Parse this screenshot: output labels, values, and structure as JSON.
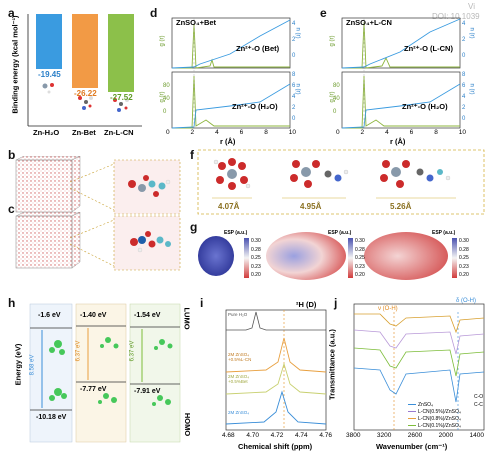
{
  "watermark": {
    "line1": "Vi",
    "line2": "DOI: 10.1039"
  },
  "panels": {
    "a": {
      "label": "a",
      "ylabel": "Binding energy (kcal mol⁻¹)",
      "categories": [
        "Zn-H₂O",
        "Zn-Bet",
        "Zn-L-CN"
      ],
      "values": [
        "-19.45",
        "-26.22",
        "-27.52"
      ],
      "colors": [
        "#3a9be0",
        "#f29a45",
        "#8cc04a"
      ]
    },
    "d": {
      "label": "d",
      "top_legend": "ZnSO₄+Bet",
      "top_annot": "Zn²⁺-O (Bet)",
      "bottom_annot": "Zn²⁺-O (H₂O)",
      "g_label": "g (r)",
      "n_label": "n (r)",
      "xlabel": "r (Å)",
      "xticks": [
        "0",
        "2",
        "4",
        "6",
        "8",
        "10"
      ],
      "yticks_left": [
        "0",
        "40",
        "80"
      ],
      "yticks_right_top": [
        "0",
        "2",
        "4"
      ],
      "yticks_right_bottom": [
        "0",
        "2",
        "4",
        "6",
        "8"
      ]
    },
    "e": {
      "label": "e",
      "top_legend": "ZnSO₄+L-CN",
      "top_annot": "Zn²⁺-O (L-CN)",
      "bottom_annot": "Zn²⁺-O (H₂O)",
      "g_label": "g (r)",
      "n_label": "n (r)",
      "xlabel": "r (Å)",
      "xticks": [
        "0",
        "2",
        "4",
        "6",
        "8",
        "10"
      ],
      "yticks_left": [
        "0",
        "40",
        "80"
      ],
      "yticks_right_top": [
        "0",
        "2",
        "4"
      ],
      "yticks_right_bottom": [
        "0",
        "2",
        "4",
        "6",
        "8"
      ]
    },
    "b": {
      "label": "b"
    },
    "c": {
      "label": "c"
    },
    "f": {
      "label": "f",
      "dims": [
        "4.07Å",
        "4.95Å",
        "5.26Å"
      ]
    },
    "g": {
      "label": "g",
      "esp_title": "ESP (a.u.)",
      "scales": [
        [
          "0.30",
          "0.28",
          "0.25",
          "0.23",
          "0.20"
        ],
        [
          "0.30",
          "0.28",
          "0.25",
          "0.23",
          "0.20"
        ],
        [
          "0.30",
          "0.28",
          "0.25",
          "0.23",
          "0.20"
        ]
      ]
    },
    "h": {
      "label": "h",
      "ylabel": "Energy (eV)",
      "lumo": [
        "-1.6 eV",
        "-1.40 eV",
        "-1.54 eV"
      ],
      "homo": [
        "-10.18 eV",
        "-7.77 eV",
        "-7.91 eV"
      ],
      "gaps": [
        "8.58 eV",
        "6.37 eV",
        "6.37 eV"
      ],
      "side_top": "LUMO",
      "side_bottom": "HOMO"
    },
    "i": {
      "label": "i",
      "title": "²H (D)",
      "curve_labels": [
        "Pure H₂O",
        "2M ZnSO₄ +0.5%L-CN",
        "2M ZnSO₄ +0.5%Bet",
        "2M ZnSO₄"
      ],
      "xlabel": "Chemical shift (ppm)",
      "xticks": [
        "4.68",
        "4.70",
        "4.72",
        "4.74",
        "4.76"
      ]
    },
    "j": {
      "label": "j",
      "ylabel": "Transmittance (a.u.)",
      "xlabel": "Wavenumber (cm⁻¹)",
      "xticks": [
        "3800",
        "3200",
        "2600",
        "2000",
        "1400"
      ],
      "ann_oh": "ν (O-H)",
      "ann_delta": "δ (O-H)",
      "ann_co": "C-O",
      "ann_cc": "C-C",
      "legend": [
        "ZnSO₄",
        "L-CN(0.5%)/ZnSO₄",
        "L-CN(0.8%)/ZnSO₄",
        "L-CN(0.1%)/ZnSO₄"
      ],
      "legend_colors": [
        "#3a8ed8",
        "#9a7bd0",
        "#e8a040",
        "#7dbd3a"
      ]
    }
  }
}
